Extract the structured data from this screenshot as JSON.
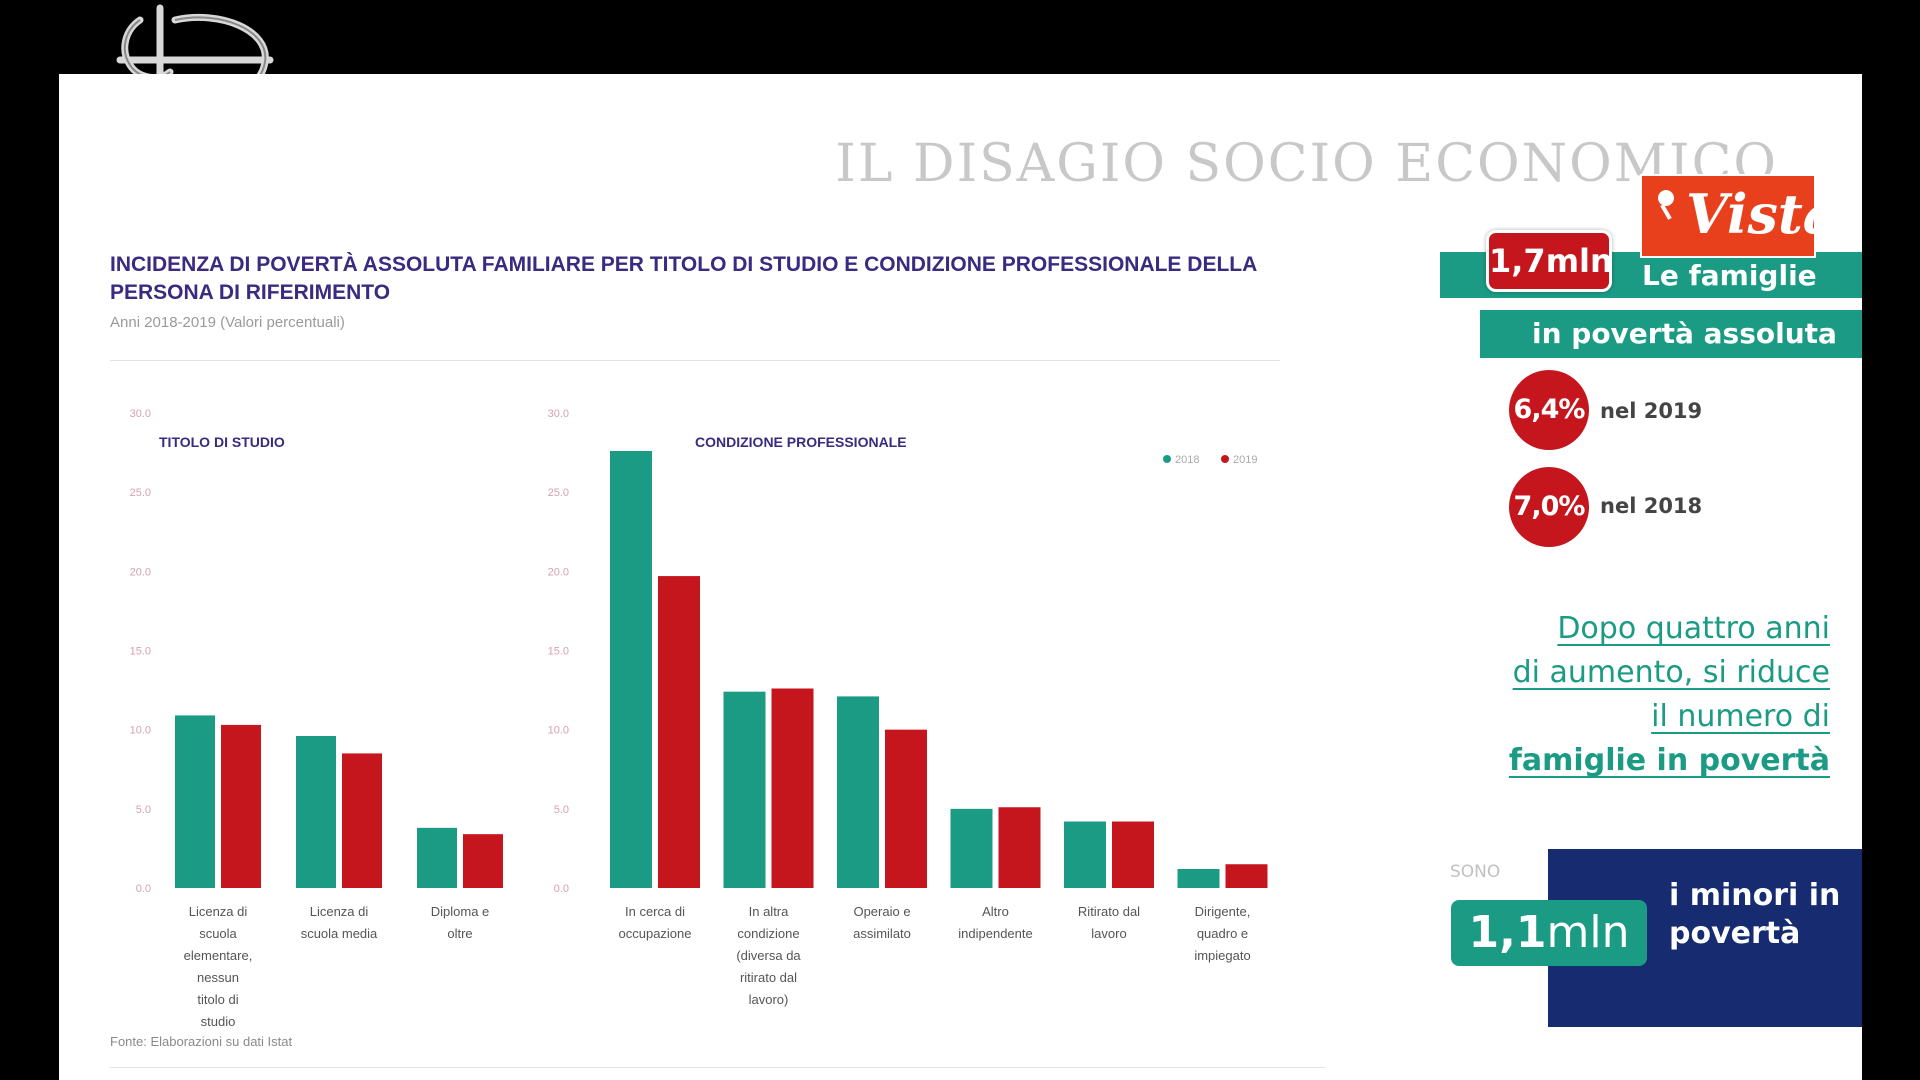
{
  "slide_title": "IL DISAGIO SOCIO ECONOMICO",
  "watermark": "Vista",
  "chart_heading": {
    "title": "INCIDENZA DI POVERTÀ ASSOLUTA FAMILIARE PER TITOLO DI STUDIO E CONDIZIONE PROFESSIONALE DELLA PERSONA DI RIFERIMENTO",
    "subtitle": "Anni 2018-2019 (Valori percentuali)",
    "source": "Fonte: Elaborazioni su dati Istat"
  },
  "colors": {
    "series_2018": "#1b9b84",
    "series_2019": "#c4161c",
    "navy": "#162b70",
    "title": "#3a2a80"
  },
  "chart_data": [
    {
      "type": "bar",
      "title": "TITOLO DI STUDIO",
      "categories": [
        "Licenza di scuola elementare, nessun titolo di studio",
        "Licenza di scuola media",
        "Diploma e oltre"
      ],
      "series": [
        {
          "name": "2018",
          "values": [
            10.9,
            9.6,
            3.8
          ]
        },
        {
          "name": "2019",
          "values": [
            10.3,
            8.5,
            3.4
          ]
        }
      ],
      "yticks": [
        "0.0",
        "5.0",
        "10.0",
        "15.0",
        "20.0",
        "25.0",
        "30.0"
      ],
      "ylim": [
        0,
        30
      ],
      "grid": false
    },
    {
      "type": "bar",
      "title": "CONDIZIONE PROFESSIONALE",
      "categories": [
        "In cerca di occupazione",
        "In altra condizione (diversa da ritirato dal lavoro)",
        "Operaio e assimilato",
        "Altro indipendente",
        "Ritirato dal lavoro",
        "Dirigente, quadro e impiegato"
      ],
      "series": [
        {
          "name": "2018",
          "values": [
            27.6,
            12.4,
            12.1,
            5.0,
            4.2,
            1.2
          ]
        },
        {
          "name": "2019",
          "values": [
            19.7,
            12.6,
            10.0,
            5.1,
            4.2,
            1.5
          ]
        }
      ],
      "yticks": [
        "0.0",
        "5.0",
        "10.0",
        "15.0",
        "20.0",
        "25.0",
        "30.0"
      ],
      "ylim": [
        0,
        30
      ],
      "legend": {
        "position": "top-right",
        "labels": [
          "2018",
          "2019"
        ]
      },
      "grid": false
    }
  ],
  "panel": {
    "families_value": "1,7mln",
    "families_label_1": "Le famiglie",
    "families_label_2": "in povertà assoluta",
    "pct_2019": "6,4%",
    "pct_2019_label": "nel 2019",
    "pct_2018": "7,0%",
    "pct_2018_label": "nel 2018",
    "para_1": "Dopo quattro anni",
    "para_2": "di aumento, si riduce",
    "para_3": "il numero di",
    "para_4": "famiglie in povertà",
    "sono_label": "SONO",
    "minors_number": "1,1",
    "minors_unit": "mln",
    "minors_label": "i minori in povertà"
  }
}
